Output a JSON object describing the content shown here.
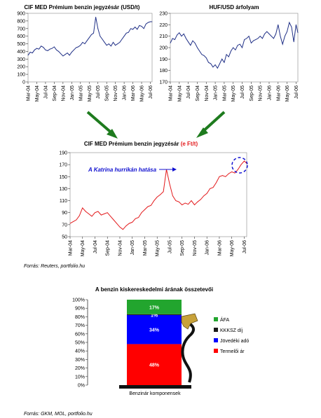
{
  "chart_data": [
    {
      "type": "line",
      "title": "CIF MED Prémium benzin jegyzésár (USD/t)",
      "ylim": [
        0,
        900
      ],
      "yticks": [
        0,
        100,
        200,
        300,
        400,
        500,
        600,
        700,
        800,
        900
      ],
      "xticks": [
        "Mar-04",
        "May-04",
        "Jul-04",
        "Sep-04",
        "Nov-04",
        "Jan-05",
        "Mar-05",
        "May-05",
        "Jul-05",
        "Sep-05",
        "Nov-05",
        "Jan-06",
        "Mar-06",
        "May-06",
        "Jul-06"
      ],
      "grid": false,
      "series": [
        {
          "color": "#1f2f86",
          "x": [
            0,
            0.5,
            1,
            1.5,
            2,
            2.5,
            3,
            3.5,
            4,
            4.5,
            5,
            5.5,
            6,
            6.5,
            7,
            7.5,
            8,
            8.5,
            9,
            9.5,
            10,
            10.5,
            11,
            11.5,
            12,
            12.5,
            13,
            13.5,
            14,
            14.5,
            15,
            15.5,
            16,
            16.5,
            17,
            17.5,
            18,
            18.5,
            19,
            19.5,
            20,
            20.5,
            21,
            21.5,
            22,
            22.5,
            23,
            23.5,
            24,
            24.5,
            25,
            25.5,
            26,
            26.5,
            27,
            27.5,
            28,
            28.4
          ],
          "values": [
            350,
            390,
            380,
            420,
            440,
            430,
            470,
            455,
            420,
            410,
            430,
            440,
            460,
            420,
            400,
            370,
            340,
            360,
            380,
            350,
            390,
            420,
            450,
            460,
            480,
            520,
            500,
            540,
            580,
            620,
            640,
            850,
            700,
            600,
            560,
            520,
            480,
            500,
            470,
            520,
            480,
            500,
            520,
            560,
            600,
            640,
            650,
            700,
            690,
            720,
            690,
            740,
            730,
            700,
            760,
            780,
            790,
            790
          ]
        }
      ]
    },
    {
      "type": "line",
      "title": "HUF/USD árfolyam",
      "ylim": [
        170,
        230
      ],
      "yticks": [
        170,
        180,
        190,
        200,
        210,
        220,
        230
      ],
      "xticks": [
        "Mar-04",
        "May-04",
        "Jul-04",
        "Sep-04",
        "Nov-04",
        "Jan-05",
        "Mar-05",
        "May-05",
        "Jul-05",
        "Sep-05",
        "Nov-05",
        "Jan-06",
        "Mar-06",
        "May-06",
        "Jul-06"
      ],
      "grid": false,
      "series": [
        {
          "color": "#1f2f86",
          "x": [
            0,
            0.5,
            1,
            1.5,
            2,
            2.5,
            3,
            3.5,
            4,
            4.5,
            5,
            5.5,
            6,
            6.5,
            7,
            7.5,
            8,
            8.5,
            9,
            9.5,
            10,
            10.5,
            11,
            11.5,
            12,
            12.5,
            13,
            13.5,
            14,
            14.5,
            15,
            15.5,
            16,
            16.5,
            17,
            17.5,
            18,
            18.5,
            19,
            19.5,
            20,
            20.5,
            21,
            21.5,
            22,
            22.5,
            23,
            23.5,
            24,
            24.5,
            25,
            25.5,
            26,
            26.5,
            27,
            27.5,
            28,
            28.4
          ],
          "values": [
            204,
            208,
            207,
            211,
            213,
            210,
            212,
            208,
            205,
            202,
            206,
            204,
            200,
            197,
            194,
            193,
            191,
            187,
            186,
            183,
            185,
            182,
            186,
            190,
            187,
            194,
            192,
            197,
            200,
            198,
            202,
            203,
            200,
            207,
            208,
            210,
            204,
            206,
            207,
            208,
            210,
            208,
            212,
            214,
            212,
            210,
            208,
            212,
            220,
            210,
            203,
            210,
            214,
            222,
            218,
            205,
            220,
            213
          ]
        }
      ]
    },
    {
      "type": "line",
      "title": "CIF MED Prémium benzin jegyzésár",
      "title_unit": "(e Ft/t)",
      "ylim": [
        50,
        190
      ],
      "yticks": [
        50,
        70,
        90,
        110,
        130,
        150,
        170,
        190
      ],
      "xticks": [
        "Mar-04",
        "May-04",
        "Jul-04",
        "Sep-04",
        "Nov-04",
        "Jan-05",
        "Mar-05",
        "May-05",
        "Jul-05",
        "Sep-05",
        "Nov-05",
        "Jan-06",
        "Mar-06",
        "May-06",
        "Jul-06"
      ],
      "grid": false,
      "annotation": "A Katrina hurrikán hatása",
      "series": [
        {
          "color": "#e31a1c",
          "x": [
            0,
            0.5,
            1,
            1.5,
            2,
            2.5,
            3,
            3.5,
            4,
            4.5,
            5,
            5.5,
            6,
            6.5,
            7,
            7.5,
            8,
            8.5,
            9,
            9.5,
            10,
            10.5,
            11,
            11.5,
            12,
            12.5,
            13,
            13.5,
            14,
            14.5,
            15,
            15.5,
            16,
            16.5,
            17,
            17.5,
            18,
            18.5,
            19,
            19.5,
            20,
            20.5,
            21,
            21.5,
            22,
            22.5,
            23,
            23.5,
            24,
            24.5,
            25,
            25.5,
            26,
            26.5,
            27,
            27.5,
            28,
            28.4
          ],
          "values": [
            72,
            75,
            78,
            85,
            98,
            92,
            88,
            84,
            90,
            92,
            86,
            88,
            90,
            84,
            78,
            72,
            66,
            62,
            68,
            72,
            74,
            80,
            82,
            90,
            95,
            100,
            102,
            110,
            116,
            120,
            125,
            162,
            138,
            118,
            110,
            108,
            103,
            106,
            104,
            110,
            103,
            108,
            112,
            118,
            122,
            130,
            132,
            140,
            150,
            152,
            150,
            155,
            158,
            156,
            162,
            170,
            176,
            172
          ]
        }
      ]
    },
    {
      "type": "bar",
      "stacked": true,
      "title": "A benzin kiskereskedelmi árának összetevői",
      "xlabel": "Benzinár komponensek",
      "ylim": [
        0,
        100
      ],
      "yticks": [
        "0%",
        "10%",
        "20%",
        "30%",
        "40%",
        "50%",
        "60%",
        "70%",
        "80%",
        "90%",
        "100%"
      ],
      "series": [
        {
          "name": "Termelői ár",
          "value": 48,
          "label": "48%",
          "color": "#ff0000"
        },
        {
          "name": "Jövedéki adó",
          "value": 34,
          "label": "34%",
          "color": "#0000ff"
        },
        {
          "name": "KKKSZ díj",
          "value": 1,
          "label": "1%",
          "color": "#1a1a1a"
        },
        {
          "name": "ÁFA",
          "value": 17,
          "label": "17%",
          "color": "#22a52e"
        }
      ]
    }
  ],
  "sources": {
    "s1": "Forrás: Reuters, portfolio.hu",
    "s2": "Forrás: GKM, MOL, portfolio.hu"
  }
}
